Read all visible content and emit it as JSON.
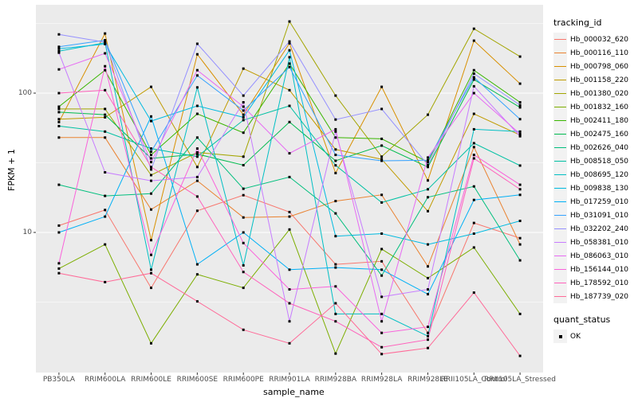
{
  "figure": {
    "y_axis_title": "FPKM + 1",
    "x_axis_title": "sample_name",
    "legend_color_title": "tracking_id",
    "legend_shape_title": "quant_status",
    "legend_shape_items": [
      {
        "label": "OK"
      }
    ],
    "panel_bg": "#EBEBEB",
    "grid_color": "#FFFFFF",
    "tick_label_color": "#4d4d4d",
    "point_color": "#000000"
  },
  "chart_data": {
    "type": "line",
    "title": "",
    "xlabel": "sample_name",
    "ylabel": "FPKM + 1",
    "y_scale": "log10",
    "ylim": [
      1,
      420
    ],
    "y_major_ticks": [
      10,
      100
    ],
    "y_minor_ticks": [
      3.162,
      31.62,
      316.2
    ],
    "grid": true,
    "legend_position": "right",
    "point_shape": "filled-black-square (quant_status = OK)",
    "categories": [
      "PB350LA",
      "RRIM600LA",
      "RRIM600LE",
      "RRIM600SE",
      "RRIM600PE",
      "RRIM901LA",
      "RRIM928BA",
      "RRIM928LA",
      "RRIM928LE",
      "RRII105LA_Control",
      "RRII105LA_Stressed"
    ],
    "series": [
      {
        "name": "Hb_000032_620",
        "color": "#F8766D",
        "values": [
          11.2,
          14.5,
          4.0,
          14.3,
          18.5,
          14.0,
          5.9,
          6.2,
          1.9,
          11.7,
          9.1
        ]
      },
      {
        "name": "Hb_000116_110",
        "color": "#EA8331",
        "values": [
          48,
          48,
          14.6,
          23.5,
          12.8,
          13,
          16.8,
          18.6,
          5.7,
          41,
          8.2
        ]
      },
      {
        "name": "Hb_000798_060",
        "color": "#D89000",
        "values": [
          62,
          268,
          8.8,
          190,
          70,
          228,
          26.7,
          111,
          23.6,
          238,
          117
        ]
      },
      {
        "name": "Hb_001158_220",
        "color": "#C09B00",
        "values": [
          65,
          67,
          111,
          29.5,
          150,
          105,
          39.4,
          33.5,
          14.2,
          71,
          50
        ]
      },
      {
        "name": "Hb_001380_020",
        "color": "#A3A500",
        "values": [
          77,
          77,
          25.8,
          37.5,
          35,
          327,
          96,
          35,
          70,
          290,
          183
        ]
      },
      {
        "name": "Hb_001832_160",
        "color": "#7CAE00",
        "values": [
          5.5,
          8.2,
          1.6,
          5.0,
          4.0,
          10.5,
          1.35,
          7.6,
          4.7,
          7.8,
          2.6
        ]
      },
      {
        "name": "Hb_002411_180",
        "color": "#39B600",
        "values": [
          80,
          146,
          36,
          71,
          52,
          163,
          48,
          47,
          32,
          146,
          86
        ]
      },
      {
        "name": "Hb_002475_160",
        "color": "#00BB4E",
        "values": [
          73,
          70,
          34,
          36.5,
          30.4,
          62,
          32.7,
          42,
          29.5,
          125,
          79
        ]
      },
      {
        "name": "Hb_002626_040",
        "color": "#00BF7D",
        "values": [
          22,
          18.3,
          19,
          48,
          20.6,
          25,
          13.7,
          4.9,
          17.9,
          21.4,
          6.3
        ]
      },
      {
        "name": "Hb_008518_050",
        "color": "#00C1A3",
        "values": [
          58,
          53,
          40,
          35,
          64,
          81,
          30.3,
          16.4,
          20.4,
          43.7,
          30.2
        ]
      },
      {
        "name": "Hb_008695_120",
        "color": "#00BFC4",
        "values": [
          200,
          230,
          5.4,
          110,
          5.8,
          181,
          2.6,
          2.6,
          1.8,
          55,
          53
        ]
      },
      {
        "name": "Hb_009838_130",
        "color": "#00BAE0",
        "values": [
          208,
          225,
          63,
          81,
          67,
          203,
          9.4,
          9.8,
          8.2,
          9.8,
          12.1
        ]
      },
      {
        "name": "Hb_017259_010",
        "color": "#00B0F6",
        "values": [
          10,
          13,
          68,
          5.9,
          10.0,
          5.4,
          5.6,
          5.4,
          3.6,
          17.1,
          18.6
        ]
      },
      {
        "name": "Hb_031091_010",
        "color": "#35A2FF",
        "values": [
          215,
          240,
          38,
          134,
          75,
          154,
          36,
          32.7,
          33,
          130,
          65
        ]
      },
      {
        "name": "Hb_032202_240",
        "color": "#9590FF",
        "values": [
          264,
          232,
          28.3,
          226,
          96,
          235,
          64.6,
          77,
          30.5,
          138,
          82
        ]
      },
      {
        "name": "Hb_058381_010",
        "color": "#C77CFF",
        "values": [
          195,
          27,
          23.5,
          25,
          86,
          2.3,
          53,
          3.45,
          3.9,
          112,
          49
        ]
      },
      {
        "name": "Hb_086063_010",
        "color": "#E76BF3",
        "values": [
          148,
          193,
          32,
          146,
          80,
          37,
          55,
          2.3,
          34.5,
          100,
          51
        ]
      },
      {
        "name": "Hb_156144_010",
        "color": "#FA62DB",
        "values": [
          6.0,
          156,
          6.9,
          40,
          8.4,
          3.9,
          4.1,
          1.9,
          2.1,
          36,
          22
        ]
      },
      {
        "name": "Hb_178592_010",
        "color": "#FF62BC",
        "values": [
          100,
          105,
          29.5,
          18.1,
          5.2,
          3.1,
          2.3,
          1.5,
          1.7,
          34,
          20.4
        ]
      },
      {
        "name": "Hb_187739_020",
        "color": "#FF6A98",
        "values": [
          5.1,
          4.4,
          5.1,
          3.2,
          2.0,
          1.6,
          3.1,
          1.34,
          1.48,
          3.7,
          1.3
        ]
      }
    ]
  }
}
